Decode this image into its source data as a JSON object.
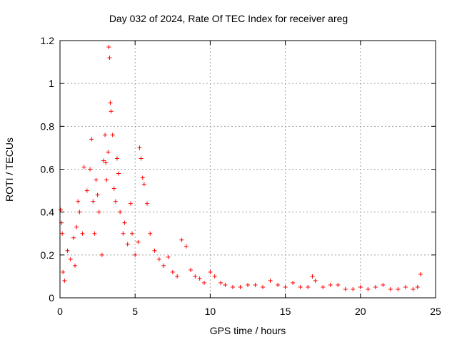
{
  "chart_data": {
    "type": "scatter",
    "title": "Day 032 of 2024, Rate Of TEC Index for receiver areg",
    "xlabel": "GPS time / hours",
    "ylabel": "ROTI / TECUs",
    "xlim": [
      0,
      25
    ],
    "ylim": [
      0,
      1.2
    ],
    "xticks": [
      0,
      5,
      10,
      15,
      20,
      25
    ],
    "yticks": [
      0,
      0.2,
      0.4,
      0.6,
      0.8,
      1,
      1.2
    ],
    "xtick_labels": [
      "0",
      "5",
      "10",
      "15",
      "20",
      "25"
    ],
    "ytick_labels": [
      "0",
      "0.2",
      "0.4",
      "0.6",
      "0.8",
      "1",
      "1.2"
    ],
    "grid": true,
    "marker": "plus",
    "series": [
      {
        "color": "#ff0000",
        "x": [
          0.05,
          0.1,
          0.15,
          0.2,
          0.3,
          0.5,
          0.7,
          0.9,
          1.0,
          1.1,
          1.2,
          1.3,
          1.5,
          1.6,
          1.8,
          2.0,
          2.1,
          2.2,
          2.3,
          2.4,
          2.5,
          2.6,
          2.8,
          2.9,
          3.0,
          3.05,
          3.1,
          3.2,
          3.25,
          3.3,
          3.35,
          3.4,
          3.5,
          3.6,
          3.7,
          3.8,
          3.9,
          4.0,
          4.2,
          4.3,
          4.5,
          4.7,
          4.8,
          5.0,
          5.2,
          5.3,
          5.4,
          5.5,
          5.6,
          5.8,
          6.0,
          6.3,
          6.6,
          6.9,
          7.2,
          7.5,
          7.8,
          8.1,
          8.4,
          8.7,
          9.0,
          9.3,
          9.6,
          10.0,
          10.3,
          10.7,
          11.0,
          11.5,
          12.0,
          12.5,
          13.0,
          13.5,
          14.0,
          14.5,
          15.0,
          15.5,
          16.0,
          16.5,
          16.8,
          17.0,
          17.5,
          18.0,
          18.5,
          19.0,
          19.5,
          20.0,
          20.5,
          21.0,
          21.5,
          22.0,
          22.5,
          23.0,
          23.5,
          23.8,
          24.0
        ],
        "y": [
          0.41,
          0.35,
          0.3,
          0.12,
          0.08,
          0.22,
          0.18,
          0.28,
          0.15,
          0.33,
          0.45,
          0.4,
          0.3,
          0.61,
          0.5,
          0.6,
          0.74,
          0.45,
          0.3,
          0.55,
          0.48,
          0.4,
          0.2,
          0.64,
          0.76,
          0.63,
          0.55,
          0.68,
          1.17,
          1.12,
          0.91,
          0.87,
          0.76,
          0.51,
          0.45,
          0.65,
          0.58,
          0.4,
          0.3,
          0.35,
          0.25,
          0.44,
          0.3,
          0.2,
          0.26,
          0.7,
          0.65,
          0.56,
          0.53,
          0.44,
          0.3,
          0.22,
          0.18,
          0.15,
          0.19,
          0.12,
          0.1,
          0.27,
          0.24,
          0.13,
          0.1,
          0.09,
          0.07,
          0.12,
          0.1,
          0.07,
          0.06,
          0.05,
          0.05,
          0.06,
          0.06,
          0.05,
          0.08,
          0.06,
          0.05,
          0.07,
          0.05,
          0.05,
          0.1,
          0.08,
          0.05,
          0.06,
          0.06,
          0.04,
          0.04,
          0.05,
          0.04,
          0.05,
          0.06,
          0.04,
          0.04,
          0.05,
          0.04,
          0.05,
          0.11
        ]
      }
    ]
  }
}
